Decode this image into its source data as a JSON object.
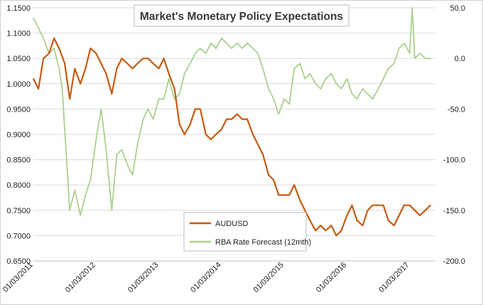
{
  "chart_data": {
    "type": "line",
    "title": "Market's Monetary Policy Expectations",
    "x_tick_labels": [
      "01/03/2011",
      "01/03/2012",
      "01/03/2013",
      "01/03/2014",
      "01/03/2015",
      "01/03/2016",
      "01/03/2017"
    ],
    "x_range_years": [
      2011.17,
      2017.58
    ],
    "y_left": {
      "range": [
        0.65,
        1.15
      ],
      "tick_labels": [
        "1.1500",
        "1.1000",
        "1.0500",
        "1.0000",
        "0.9500",
        "0.9000",
        "0.8500",
        "0.8000",
        "0.7500",
        "0.7000",
        "0.6500"
      ],
      "tick_values": [
        1.15,
        1.1,
        1.05,
        1.0,
        0.95,
        0.9,
        0.85,
        0.8,
        0.75,
        0.7,
        0.65
      ]
    },
    "y_right": {
      "range": [
        -200,
        50
      ],
      "tick_labels": [
        "50.0",
        "0.0",
        "-50.0",
        "-100.0",
        "-150.0",
        "-200.0"
      ],
      "tick_values": [
        50,
        0,
        -50,
        -100,
        -150,
        -200
      ]
    },
    "grid": "horizontal",
    "legend_position": "lower-center",
    "series": [
      {
        "name": "AUDUSD",
        "axis": "left",
        "color": "#c55a11",
        "points": [
          [
            2011.17,
            1.01
          ],
          [
            2011.25,
            0.99
          ],
          [
            2011.33,
            1.05
          ],
          [
            2011.42,
            1.06
          ],
          [
            2011.5,
            1.09
          ],
          [
            2011.58,
            1.07
          ],
          [
            2011.67,
            1.04
          ],
          [
            2011.75,
            0.97
          ],
          [
            2011.83,
            1.03
          ],
          [
            2011.92,
            1.0
          ],
          [
            2012.0,
            1.03
          ],
          [
            2012.08,
            1.07
          ],
          [
            2012.17,
            1.06
          ],
          [
            2012.25,
            1.04
          ],
          [
            2012.33,
            1.02
          ],
          [
            2012.42,
            0.98
          ],
          [
            2012.5,
            1.03
          ],
          [
            2012.58,
            1.05
          ],
          [
            2012.67,
            1.04
          ],
          [
            2012.75,
            1.03
          ],
          [
            2012.83,
            1.04
          ],
          [
            2012.92,
            1.05
          ],
          [
            2013.0,
            1.05
          ],
          [
            2013.08,
            1.04
          ],
          [
            2013.17,
            1.03
          ],
          [
            2013.25,
            1.05
          ],
          [
            2013.33,
            1.02
          ],
          [
            2013.42,
            0.99
          ],
          [
            2013.5,
            0.92
          ],
          [
            2013.58,
            0.9
          ],
          [
            2013.67,
            0.92
          ],
          [
            2013.75,
            0.95
          ],
          [
            2013.83,
            0.95
          ],
          [
            2013.92,
            0.9
          ],
          [
            2014.0,
            0.89
          ],
          [
            2014.08,
            0.9
          ],
          [
            2014.17,
            0.91
          ],
          [
            2014.25,
            0.93
          ],
          [
            2014.33,
            0.93
          ],
          [
            2014.42,
            0.94
          ],
          [
            2014.5,
            0.93
          ],
          [
            2014.58,
            0.93
          ],
          [
            2014.67,
            0.9
          ],
          [
            2014.75,
            0.88
          ],
          [
            2014.83,
            0.86
          ],
          [
            2014.92,
            0.82
          ],
          [
            2015.0,
            0.81
          ],
          [
            2015.08,
            0.78
          ],
          [
            2015.17,
            0.78
          ],
          [
            2015.25,
            0.78
          ],
          [
            2015.33,
            0.8
          ],
          [
            2015.42,
            0.77
          ],
          [
            2015.5,
            0.75
          ],
          [
            2015.58,
            0.73
          ],
          [
            2015.67,
            0.71
          ],
          [
            2015.75,
            0.72
          ],
          [
            2015.83,
            0.71
          ],
          [
            2015.92,
            0.72
          ],
          [
            2016.0,
            0.7
          ],
          [
            2016.08,
            0.71
          ],
          [
            2016.17,
            0.74
          ],
          [
            2016.25,
            0.76
          ],
          [
            2016.33,
            0.73
          ],
          [
            2016.42,
            0.72
          ],
          [
            2016.5,
            0.75
          ],
          [
            2016.58,
            0.76
          ],
          [
            2016.67,
            0.76
          ],
          [
            2016.75,
            0.76
          ],
          [
            2016.83,
            0.73
          ],
          [
            2016.92,
            0.72
          ],
          [
            2017.0,
            0.74
          ],
          [
            2017.08,
            0.76
          ],
          [
            2017.17,
            0.76
          ],
          [
            2017.25,
            0.75
          ],
          [
            2017.33,
            0.74
          ],
          [
            2017.42,
            0.75
          ],
          [
            2017.5,
            0.76
          ]
        ]
      },
      {
        "name": "RBA Rate Forecast (12mth)",
        "axis": "right",
        "color": "#a9d18e",
        "points": [
          [
            2011.17,
            40
          ],
          [
            2011.25,
            30
          ],
          [
            2011.33,
            20
          ],
          [
            2011.42,
            5
          ],
          [
            2011.5,
            10
          ],
          [
            2011.58,
            -10
          ],
          [
            2011.63,
            -30
          ],
          [
            2011.67,
            -70
          ],
          [
            2011.75,
            -150
          ],
          [
            2011.83,
            -130
          ],
          [
            2011.92,
            -155
          ],
          [
            2012.0,
            -135
          ],
          [
            2012.08,
            -120
          ],
          [
            2012.17,
            -80
          ],
          [
            2012.25,
            -50
          ],
          [
            2012.33,
            -90
          ],
          [
            2012.42,
            -150
          ],
          [
            2012.5,
            -95
          ],
          [
            2012.58,
            -90
          ],
          [
            2012.67,
            -105
          ],
          [
            2012.75,
            -115
          ],
          [
            2012.83,
            -85
          ],
          [
            2012.92,
            -60
          ],
          [
            2013.0,
            -50
          ],
          [
            2013.08,
            -60
          ],
          [
            2013.17,
            -40
          ],
          [
            2013.25,
            -40
          ],
          [
            2013.33,
            -20
          ],
          [
            2013.42,
            -40
          ],
          [
            2013.5,
            -35
          ],
          [
            2013.58,
            -15
          ],
          [
            2013.67,
            -5
          ],
          [
            2013.75,
            5
          ],
          [
            2013.83,
            10
          ],
          [
            2013.92,
            5
          ],
          [
            2014.0,
            15
          ],
          [
            2014.08,
            10
          ],
          [
            2014.17,
            20
          ],
          [
            2014.25,
            15
          ],
          [
            2014.33,
            10
          ],
          [
            2014.42,
            15
          ],
          [
            2014.5,
            10
          ],
          [
            2014.58,
            15
          ],
          [
            2014.67,
            10
          ],
          [
            2014.75,
            5
          ],
          [
            2014.83,
            -10
          ],
          [
            2014.92,
            -30
          ],
          [
            2015.0,
            -40
          ],
          [
            2015.08,
            -55
          ],
          [
            2015.17,
            -40
          ],
          [
            2015.25,
            -45
          ],
          [
            2015.33,
            -10
          ],
          [
            2015.42,
            -5
          ],
          [
            2015.5,
            -20
          ],
          [
            2015.58,
            -15
          ],
          [
            2015.67,
            -25
          ],
          [
            2015.75,
            -30
          ],
          [
            2015.83,
            -20
          ],
          [
            2015.92,
            -15
          ],
          [
            2016.0,
            -25
          ],
          [
            2016.08,
            -30
          ],
          [
            2016.17,
            -20
          ],
          [
            2016.25,
            -35
          ],
          [
            2016.33,
            -40
          ],
          [
            2016.42,
            -30
          ],
          [
            2016.5,
            -35
          ],
          [
            2016.58,
            -40
          ],
          [
            2016.67,
            -30
          ],
          [
            2016.75,
            -20
          ],
          [
            2016.83,
            -10
          ],
          [
            2016.92,
            -5
          ],
          [
            2017.0,
            10
          ],
          [
            2017.08,
            15
          ],
          [
            2017.17,
            5
          ],
          [
            2017.21,
            50
          ],
          [
            2017.25,
            0
          ],
          [
            2017.33,
            5
          ],
          [
            2017.42,
            0
          ],
          [
            2017.5,
            0
          ]
        ]
      }
    ]
  }
}
